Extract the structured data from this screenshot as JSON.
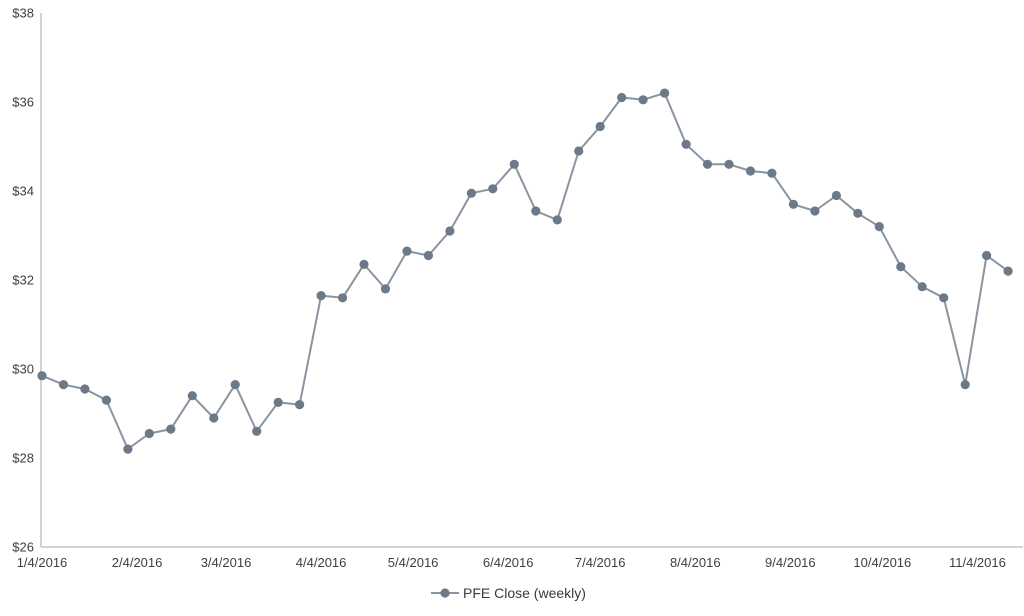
{
  "chart_data": {
    "type": "line",
    "title": "",
    "xlabel": "",
    "ylabel": "",
    "grid": false,
    "legend_position": "bottom-center",
    "ylim": [
      26,
      38
    ],
    "ytick_step": 2,
    "ytick_labels": [
      "$26",
      "$28",
      "$30",
      "$32",
      "$34",
      "$36",
      "$38"
    ],
    "xtick_labels": [
      "1/4/2016",
      "2/4/2016",
      "3/4/2016",
      "4/4/2016",
      "5/4/2016",
      "6/4/2016",
      "7/4/2016",
      "8/4/2016",
      "9/4/2016",
      "10/4/2016",
      "11/4/2016"
    ],
    "series": [
      {
        "name": "PFE Close (weekly)",
        "x": [
          "1/4/2016",
          "1/11/2016",
          "1/18/2016",
          "1/25/2016",
          "2/1/2016",
          "2/8/2016",
          "2/15/2016",
          "2/22/2016",
          "2/29/2016",
          "3/7/2016",
          "3/14/2016",
          "3/21/2016",
          "3/28/2016",
          "4/4/2016",
          "4/11/2016",
          "4/18/2016",
          "4/25/2016",
          "5/2/2016",
          "5/9/2016",
          "5/16/2016",
          "5/23/2016",
          "5/30/2016",
          "6/6/2016",
          "6/13/2016",
          "6/20/2016",
          "6/27/2016",
          "7/4/2016",
          "7/11/2016",
          "7/18/2016",
          "7/25/2016",
          "8/1/2016",
          "8/8/2016",
          "8/15/2016",
          "8/22/2016",
          "8/29/2016",
          "9/5/2016",
          "9/12/2016",
          "9/19/2016",
          "9/26/2016",
          "10/3/2016",
          "10/10/2016",
          "10/17/2016",
          "10/24/2016",
          "10/31/2016",
          "11/7/2016",
          "11/14/2016"
        ],
        "values": [
          29.85,
          29.65,
          29.55,
          29.3,
          28.2,
          28.55,
          28.65,
          29.4,
          28.9,
          29.65,
          28.6,
          29.25,
          29.2,
          31.65,
          31.6,
          32.35,
          31.8,
          32.65,
          32.55,
          33.1,
          33.95,
          34.05,
          34.6,
          33.55,
          33.35,
          34.9,
          35.45,
          36.1,
          36.05,
          36.2,
          35.05,
          34.6,
          34.6,
          34.45,
          34.4,
          33.7,
          33.55,
          33.9,
          33.5,
          33.2,
          32.3,
          31.85,
          31.6,
          29.65,
          32.55,
          32.2
        ]
      }
    ],
    "colors": {
      "line": "#8a94a0",
      "marker": "#6c7988",
      "axis": "#a6a6a6",
      "tick_text": "#3f3f3f",
      "legend_text": "#3a3a3a"
    }
  }
}
